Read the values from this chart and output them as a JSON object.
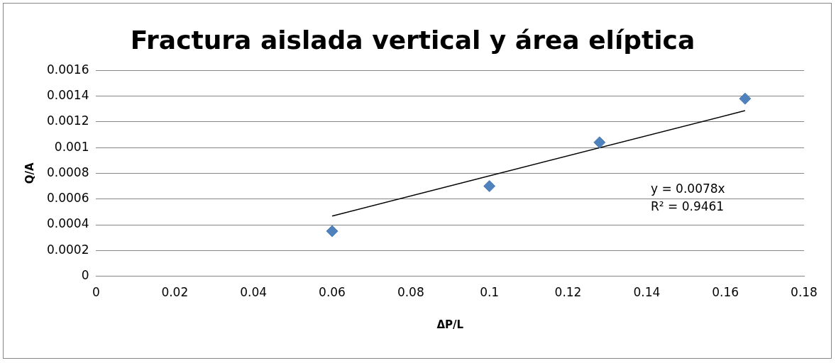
{
  "chart_data": {
    "type": "scatter",
    "title": "Fractura aislada vertical y área elíptica",
    "xlabel": "ΔP/L",
    "ylabel": "Q/A",
    "series": [
      {
        "color": "#4f81bd",
        "marker": "diamond",
        "x": [
          0.06,
          0.1,
          0.128,
          0.165
        ],
        "values": [
          0.00035,
          0.0007,
          0.00104,
          0.00138
        ]
      },
      {
        "type": "line",
        "color": "#000000",
        "marker": "none",
        "x": [
          0.06,
          0.165
        ],
        "values": [
          0.000468,
          0.001287
        ]
      }
    ],
    "xlim": [
      0,
      0.18
    ],
    "xticks": [
      0,
      0.02,
      0.04,
      0.06,
      0.08,
      0.1,
      0.12,
      0.14,
      0.16,
      0.18
    ],
    "ylim": [
      0,
      0.0016
    ],
    "yticks": [
      0,
      0.0002,
      0.0004,
      0.0006,
      0.0008,
      0.001,
      0.0012,
      0.0014,
      0.0016
    ],
    "grid": "y",
    "legend": false,
    "annotations": [
      "y = 0.0078x",
      "R² = 0.9461"
    ]
  }
}
